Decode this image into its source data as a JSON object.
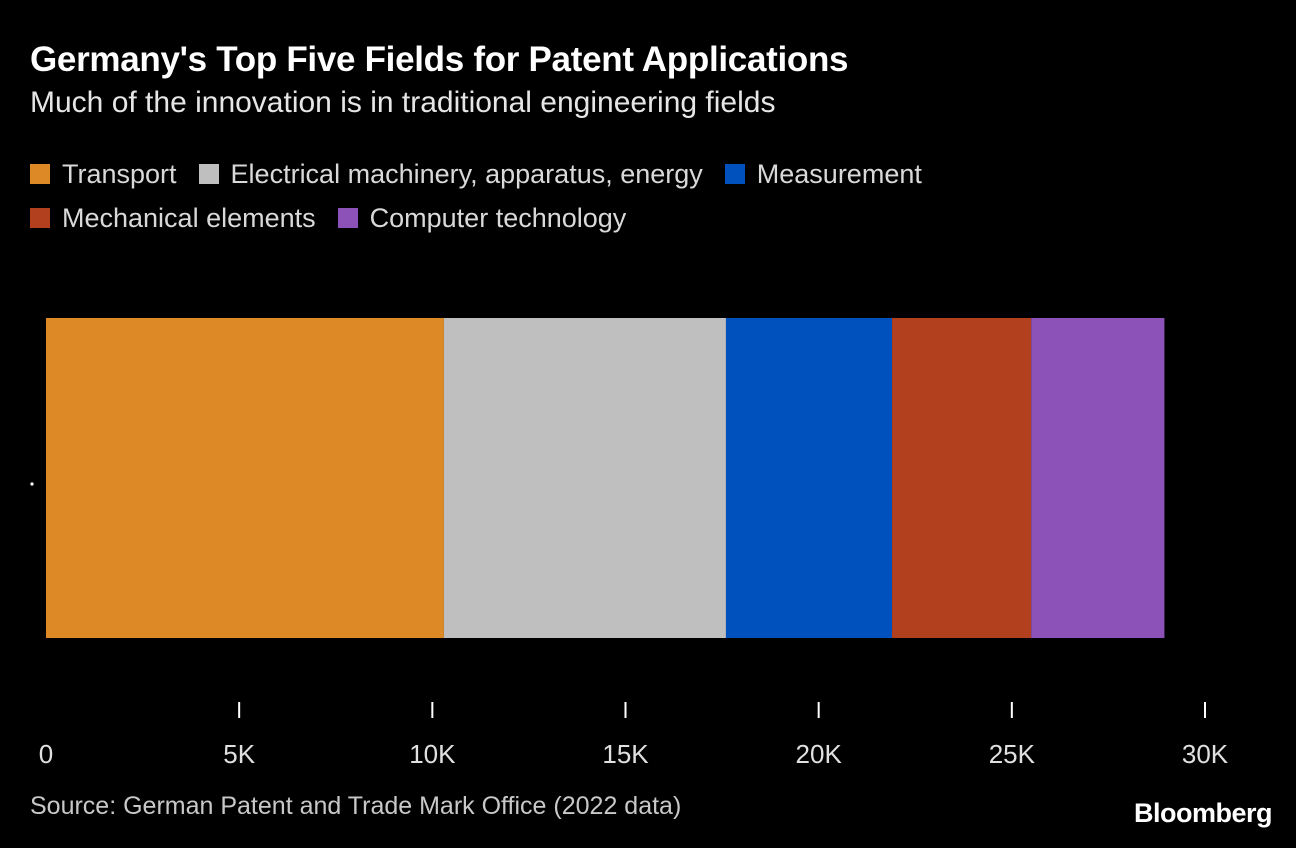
{
  "title": "Germany's Top Five Fields for Patent Applications",
  "subtitle": "Much of the innovation is in traditional engineering fields",
  "source": "Source: German Patent and Trade Mark Office (2022 data)",
  "brand": "Bloomberg",
  "chart_data": {
    "type": "bar",
    "orientation": "horizontal",
    "stacked": true,
    "categories": [
      ""
    ],
    "series": [
      {
        "name": "Transport",
        "values": [
          10300
        ],
        "color": "#dd8a26"
      },
      {
        "name": "Electrical machinery, apparatus, energy",
        "values": [
          7300
        ],
        "color": "#bfbfbf"
      },
      {
        "name": "Measurement",
        "values": [
          4300
        ],
        "color": "#0050be"
      },
      {
        "name": "Mechanical elements",
        "values": [
          3600
        ],
        "color": "#b2401f"
      },
      {
        "name": "Computer technology",
        "values": [
          3450
        ],
        "color": "#8c52b8"
      }
    ],
    "xlim": [
      0,
      30000
    ],
    "xticks": [
      0,
      5000,
      10000,
      15000,
      20000,
      25000,
      30000
    ],
    "xtick_labels": [
      "0",
      "5K",
      "10K",
      "15K",
      "20K",
      "25K",
      "30K"
    ],
    "xlabel": "",
    "ylabel": "",
    "legend_position": "top",
    "grid": false
  }
}
